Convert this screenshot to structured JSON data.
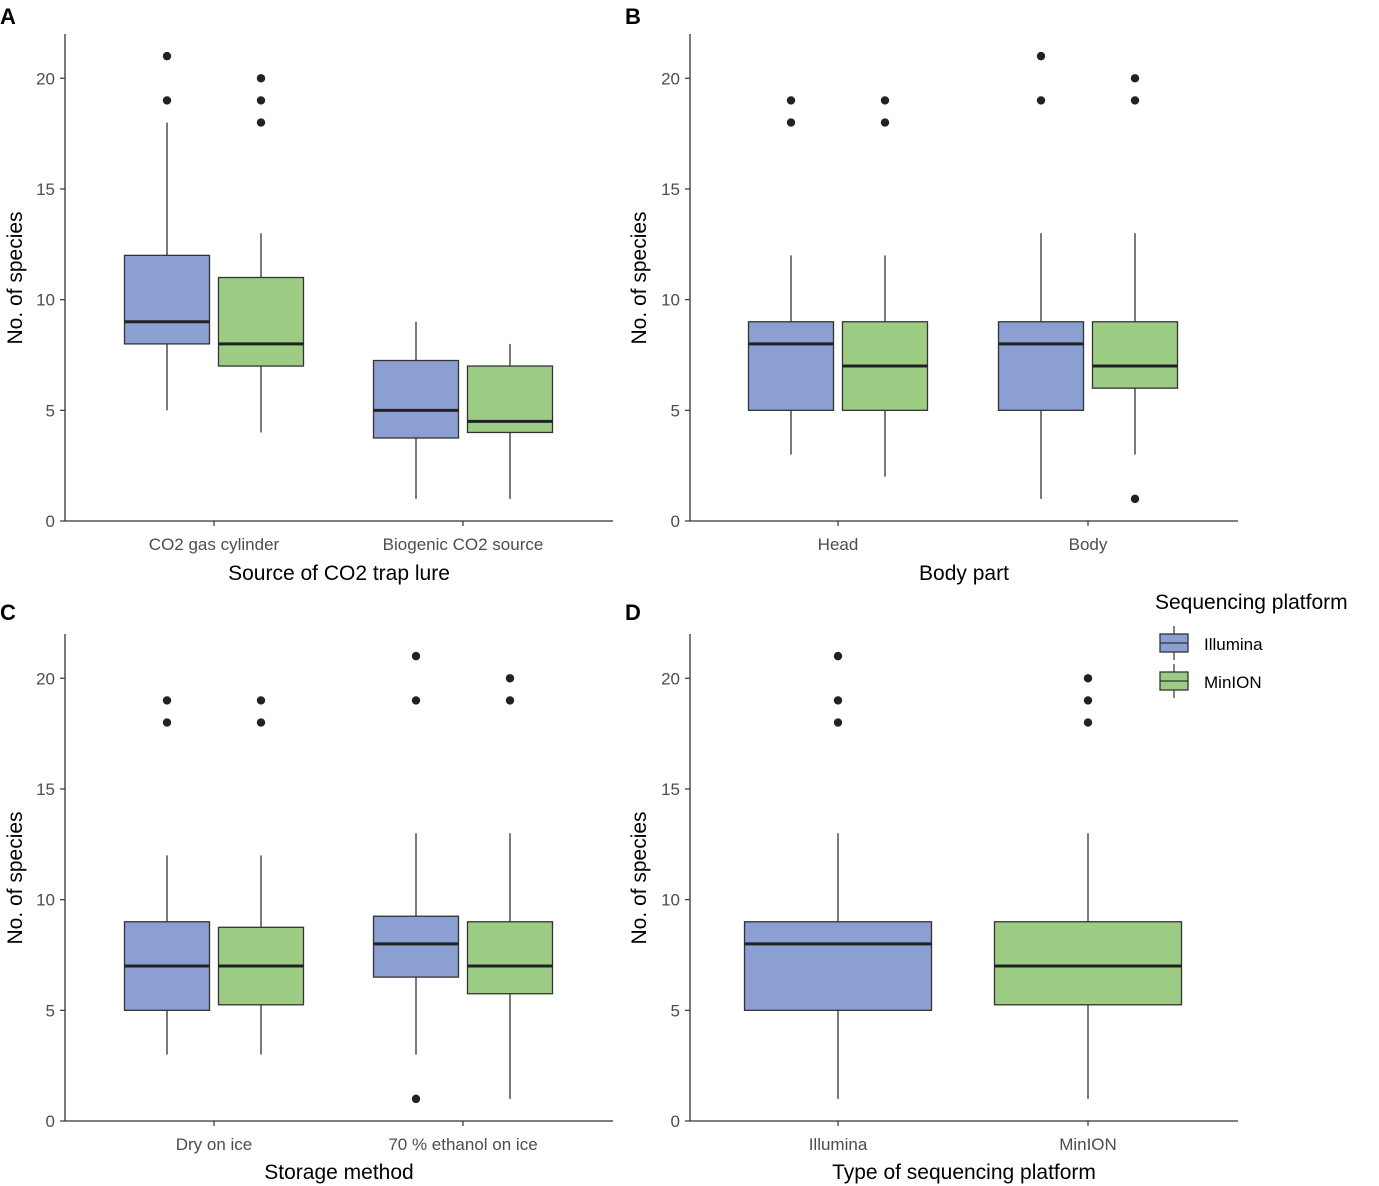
{
  "colors": {
    "illumina": "#8c9fd2",
    "minion": "#9dcd84",
    "line": "#333333",
    "outlier": "#222222",
    "axis": "#333333"
  },
  "legend": {
    "title": "Sequencing platform",
    "items": [
      {
        "label": "Illumina",
        "color": "#8c9fd2",
        "icon": "box-swatch-icon"
      },
      {
        "label": "MinION",
        "color": "#9dcd84",
        "icon": "box-swatch-icon"
      }
    ]
  },
  "chart_data": [
    {
      "id": "A",
      "type": "boxplot",
      "letter": "A",
      "xlabel": "Source of CO2 trap lure",
      "ylabel": "No. of species",
      "ylim": [
        0,
        22
      ],
      "yticks": [
        0,
        5,
        10,
        15,
        20
      ],
      "ytick_labels": [
        "0",
        "5",
        "10",
        "15",
        "20"
      ],
      "categories": [
        "CO2 gas cylinder",
        "Biogenic CO2 source"
      ],
      "series": [
        {
          "name": "Illumina",
          "boxes": [
            {
              "category": "CO2 gas cylinder",
              "q1": 8,
              "median": 9,
              "q3": 12,
              "whisker_low": 5,
              "whisker_high": 18,
              "outliers": [
                19,
                21
              ]
            },
            {
              "category": "Biogenic CO2 source",
              "q1": 3.75,
              "median": 5,
              "q3": 7.25,
              "whisker_low": 1,
              "whisker_high": 9,
              "outliers": []
            }
          ]
        },
        {
          "name": "MinION",
          "boxes": [
            {
              "category": "CO2 gas cylinder",
              "q1": 7,
              "median": 8,
              "q3": 11,
              "whisker_low": 4,
              "whisker_high": 13,
              "outliers": [
                18,
                19,
                20
              ]
            },
            {
              "category": "Biogenic CO2 source",
              "q1": 4,
              "median": 4.5,
              "q3": 7,
              "whisker_low": 1,
              "whisker_high": 8,
              "outliers": []
            }
          ]
        }
      ]
    },
    {
      "id": "B",
      "type": "boxplot",
      "letter": "B",
      "xlabel": "Body part",
      "ylabel": "No. of species",
      "ylim": [
        0,
        22
      ],
      "yticks": [
        0,
        5,
        10,
        15,
        20
      ],
      "ytick_labels": [
        "0",
        "5",
        "10",
        "15",
        "20"
      ],
      "categories": [
        "Head",
        "Body"
      ],
      "series": [
        {
          "name": "Illumina",
          "boxes": [
            {
              "category": "Head",
              "q1": 5,
              "median": 8,
              "q3": 9,
              "whisker_low": 3,
              "whisker_high": 12,
              "outliers": [
                18,
                19
              ]
            },
            {
              "category": "Body",
              "q1": 5,
              "median": 8,
              "q3": 9,
              "whisker_low": 1,
              "whisker_high": 13,
              "outliers": [
                19,
                21
              ]
            }
          ]
        },
        {
          "name": "MinION",
          "boxes": [
            {
              "category": "Head",
              "q1": 5,
              "median": 7,
              "q3": 9,
              "whisker_low": 2,
              "whisker_high": 12,
              "outliers": [
                18,
                19
              ]
            },
            {
              "category": "Body",
              "q1": 6,
              "median": 7,
              "q3": 9,
              "whisker_low": 3,
              "whisker_high": 13,
              "outliers": [
                1,
                19,
                20
              ]
            }
          ]
        }
      ]
    },
    {
      "id": "C",
      "type": "boxplot",
      "letter": "C",
      "xlabel": "Storage method",
      "ylabel": "No. of species",
      "ylim": [
        0,
        22
      ],
      "yticks": [
        0,
        5,
        10,
        15,
        20
      ],
      "ytick_labels": [
        "0",
        "5",
        "10",
        "15",
        "20"
      ],
      "categories": [
        "Dry on ice",
        "70 % ethanol on ice"
      ],
      "series": [
        {
          "name": "Illumina",
          "boxes": [
            {
              "category": "Dry on ice",
              "q1": 5,
              "median": 7,
              "q3": 9,
              "whisker_low": 3,
              "whisker_high": 12,
              "outliers": [
                18,
                19
              ]
            },
            {
              "category": "70 % ethanol on ice",
              "q1": 6.5,
              "median": 8,
              "q3": 9.25,
              "whisker_low": 3,
              "whisker_high": 13,
              "outliers": [
                1,
                19,
                21
              ]
            }
          ]
        },
        {
          "name": "MinION",
          "boxes": [
            {
              "category": "Dry on ice",
              "q1": 5.25,
              "median": 7,
              "q3": 8.75,
              "whisker_low": 3,
              "whisker_high": 12,
              "outliers": [
                18,
                19
              ]
            },
            {
              "category": "70 % ethanol on ice",
              "q1": 5.75,
              "median": 7,
              "q3": 9,
              "whisker_low": 1,
              "whisker_high": 13,
              "outliers": [
                19,
                20
              ]
            }
          ]
        }
      ]
    },
    {
      "id": "D",
      "type": "boxplot",
      "letter": "D",
      "xlabel": "Type of sequencing platform",
      "ylabel": "No. of species",
      "ylim": [
        0,
        22
      ],
      "yticks": [
        0,
        5,
        10,
        15,
        20
      ],
      "ytick_labels": [
        "0",
        "5",
        "10",
        "15",
        "20"
      ],
      "categories": [
        "Illumina",
        "MinION"
      ],
      "series": [
        {
          "name": "Illumina",
          "boxes": [
            {
              "category": "Illumina",
              "q1": 5,
              "median": 8,
              "q3": 9,
              "whisker_low": 1,
              "whisker_high": 13,
              "outliers": [
                18,
                19,
                21
              ]
            }
          ]
        },
        {
          "name": "MinION",
          "boxes": [
            {
              "category": "MinION",
              "q1": 5.25,
              "median": 7,
              "q3": 9,
              "whisker_low": 1,
              "whisker_high": 13,
              "outliers": [
                18,
                19,
                20
              ]
            }
          ]
        }
      ]
    }
  ]
}
